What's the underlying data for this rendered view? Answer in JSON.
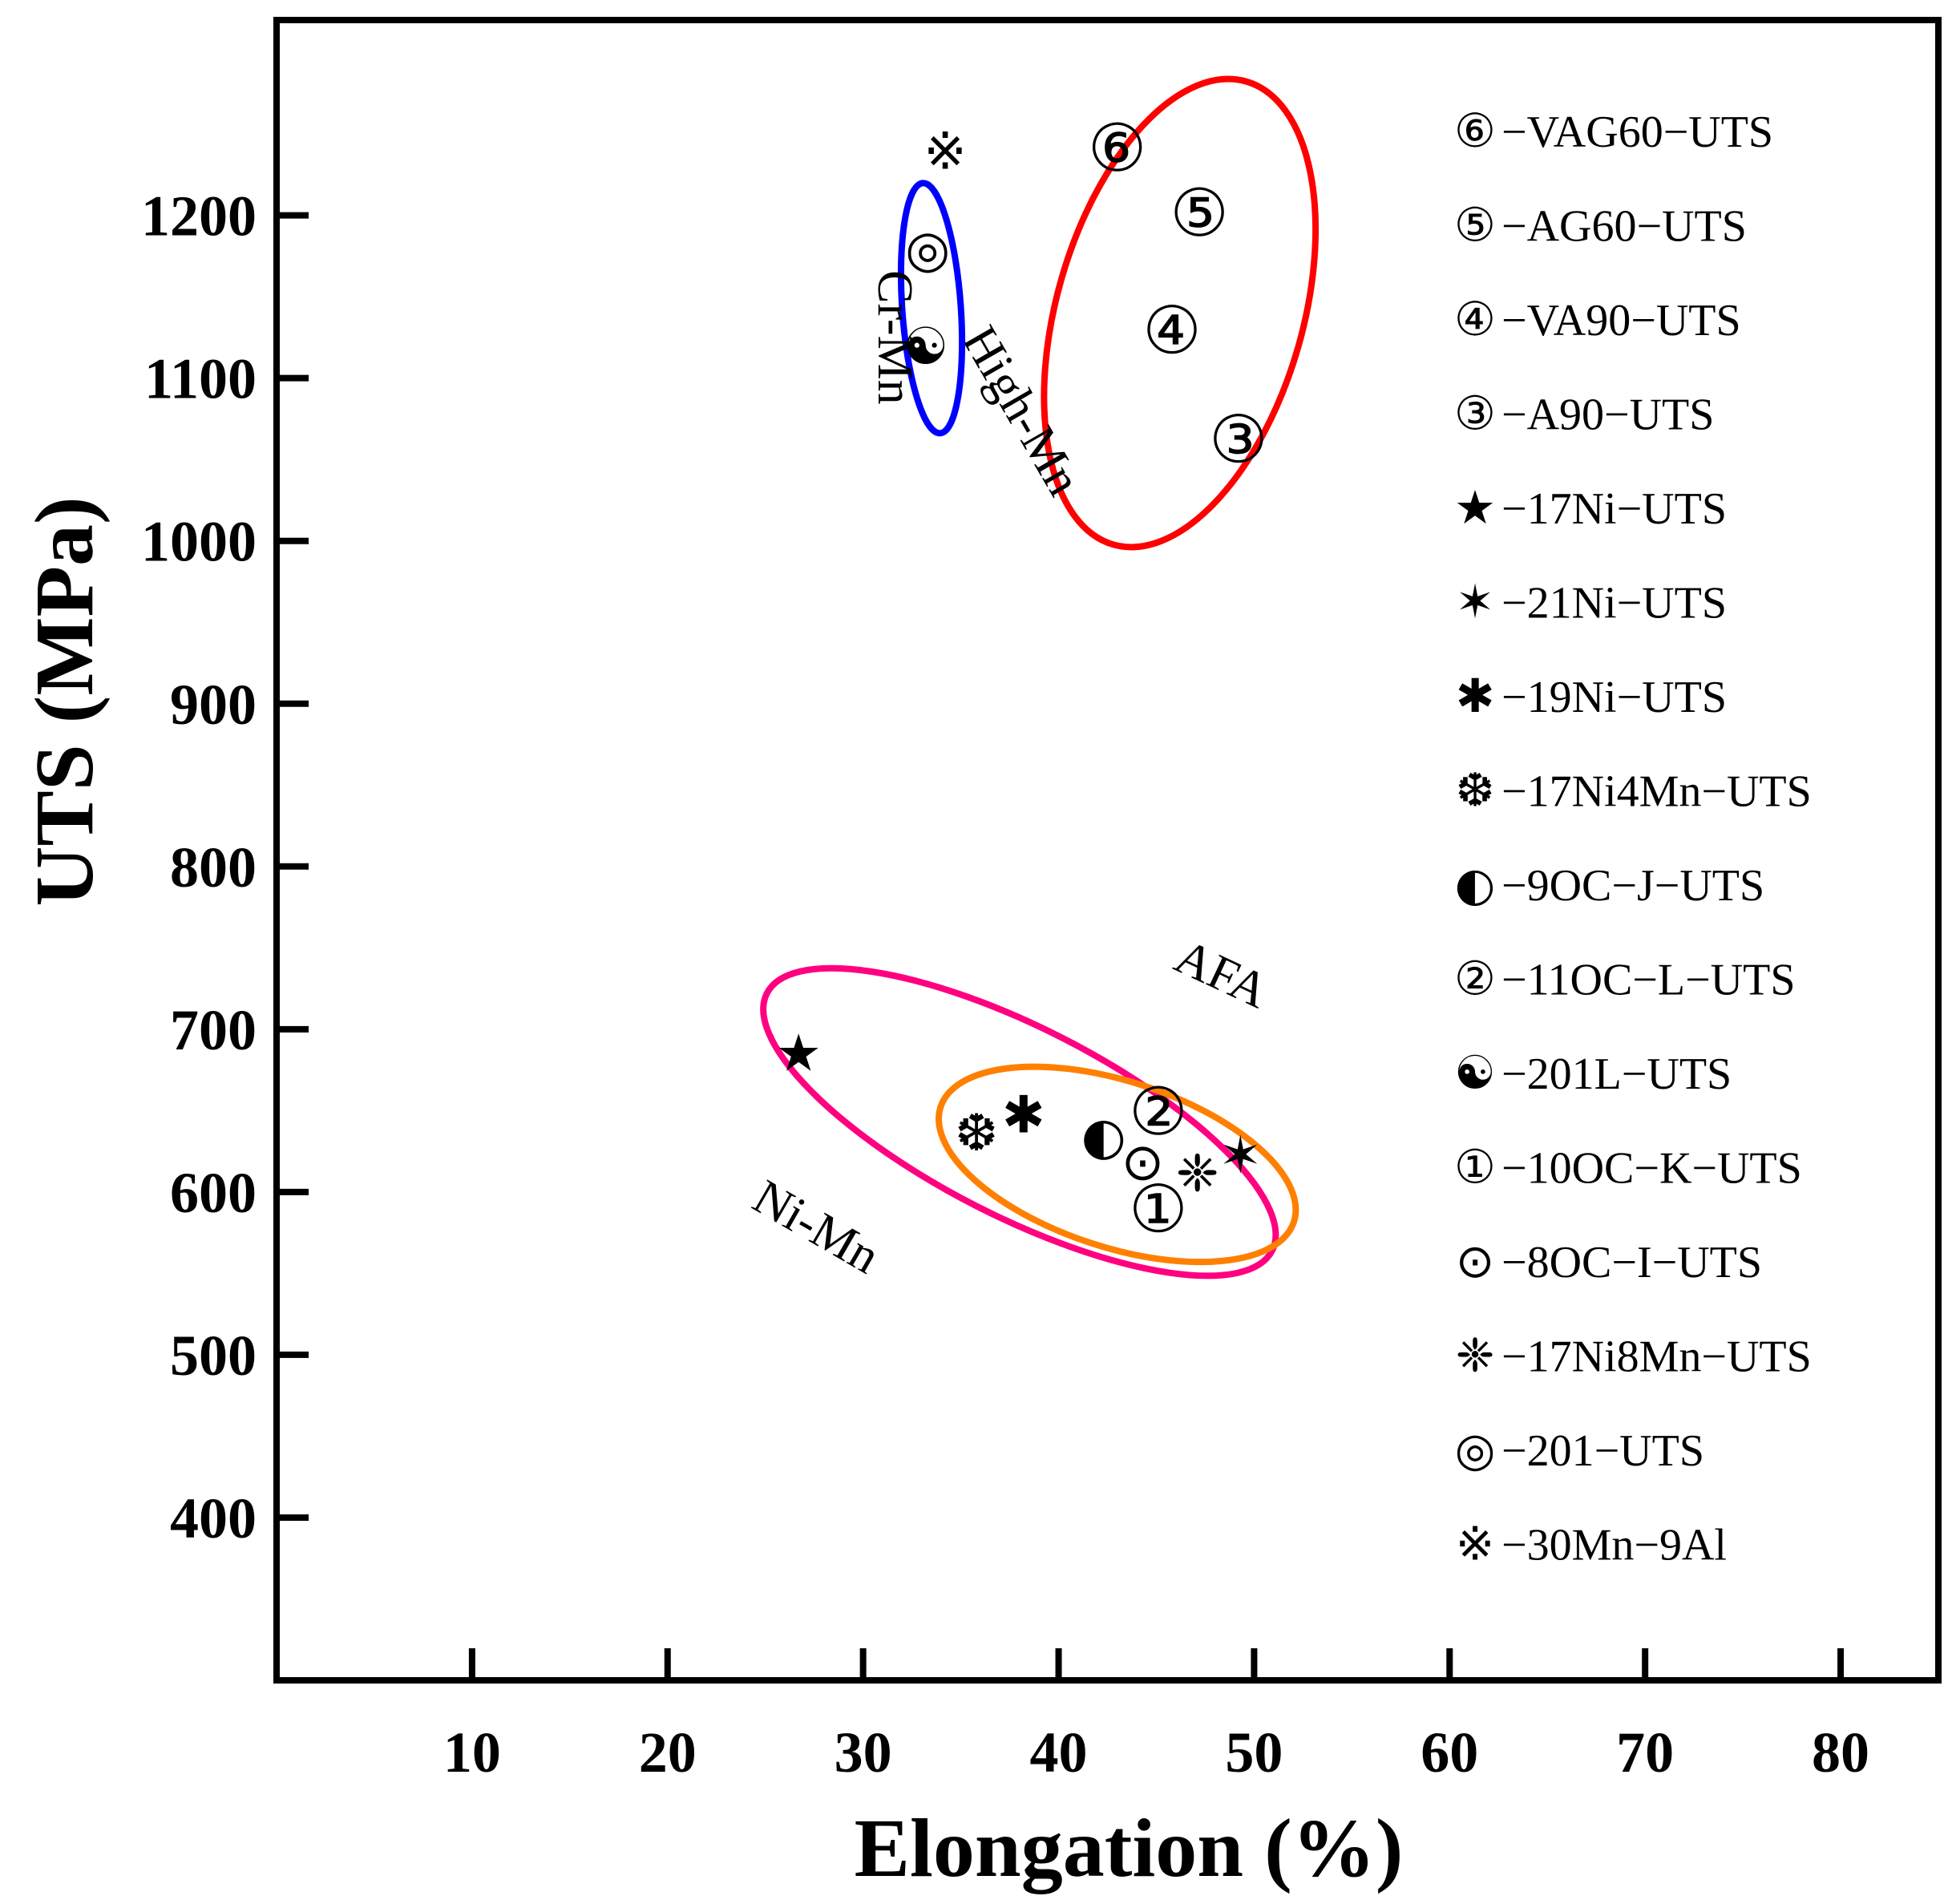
{
  "chart_data": {
    "type": "scatter",
    "title": "",
    "xlabel": "Elongation (%)",
    "ylabel": "UTS (MPa)",
    "xlim": [
      0,
      85
    ],
    "ylim": [
      300,
      1320
    ],
    "x_ticks": [
      10,
      20,
      30,
      40,
      50,
      60,
      70,
      80
    ],
    "y_ticks": [
      400,
      500,
      600,
      700,
      800,
      900,
      1000,
      1100,
      1200
    ],
    "points": [
      {
        "name": "VAG60-UTS",
        "symbol": "⑥",
        "x": 43.0,
        "y": 1242
      },
      {
        "name": "AG60-UTS",
        "symbol": "⑤",
        "x": 47.2,
        "y": 1202
      },
      {
        "name": "VA90-UTS",
        "symbol": "④",
        "x": 45.8,
        "y": 1130
      },
      {
        "name": "A90-UTS",
        "symbol": "③",
        "x": 49.2,
        "y": 1063
      },
      {
        "name": "17Ni-UTS",
        "symbol": "★",
        "x": 26.7,
        "y": 686
      },
      {
        "name": "21Ni-UTS",
        "symbol": "✶",
        "x": 49.3,
        "y": 623
      },
      {
        "name": "19Ni-UTS",
        "symbol": "✱",
        "x": 38.2,
        "y": 648
      },
      {
        "name": "17Ni4Mn-UTS",
        "symbol": "❆",
        "x": 35.8,
        "y": 637
      },
      {
        "name": "9OC-J-UTS",
        "symbol": "◐",
        "x": 42.3,
        "y": 635
      },
      {
        "name": "11OC-L-UTS",
        "symbol": "②",
        "x": 45.1,
        "y": 650
      },
      {
        "name": "201L-UTS",
        "symbol": "☯",
        "x": 33.2,
        "y": 1120
      },
      {
        "name": "10OC-K-UTS",
        "symbol": "①",
        "x": 45.1,
        "y": 590
      },
      {
        "name": "8OC-I-UTS",
        "symbol": "⊙",
        "x": 44.3,
        "y": 619
      },
      {
        "name": "17Ni8Mn-UTS",
        "symbol": "❈",
        "x": 47.1,
        "y": 612
      },
      {
        "name": "201-UTS",
        "symbol": "◎",
        "x": 33.3,
        "y": 1180
      },
      {
        "name": "30Mn-9Al",
        "symbol": "※",
        "x": 34.2,
        "y": 1240
      }
    ],
    "legend": {
      "placement": "right",
      "entries": [
        {
          "symbol": "⑥",
          "label": "−VAG60−UTS"
        },
        {
          "symbol": "⑤",
          "label": "−AG60−UTS"
        },
        {
          "symbol": "④",
          "label": "−VA90−UTS"
        },
        {
          "symbol": "③",
          "label": "−A90−UTS"
        },
        {
          "symbol": "★",
          "label": "−17Ni−UTS"
        },
        {
          "symbol": "✶",
          "label": "−21Ni−UTS"
        },
        {
          "symbol": "✱",
          "label": "−19Ni−UTS"
        },
        {
          "symbol": "❆",
          "label": "−17Ni4Mn−UTS"
        },
        {
          "symbol": "◐",
          "label": "−9OC−J−UTS"
        },
        {
          "symbol": "②",
          "label": "−11OC−L−UTS"
        },
        {
          "symbol": "☯",
          "label": "−201L−UTS"
        },
        {
          "symbol": "①",
          "label": "−10OC−K−UTS"
        },
        {
          "symbol": "⊙",
          "label": "−8OC−I−UTS"
        },
        {
          "symbol": "❈",
          "label": "−17Ni8Mn−UTS"
        },
        {
          "symbol": "◎",
          "label": "−201−UTS"
        },
        {
          "symbol": "※",
          "label": "−30Mn−9Al"
        }
      ]
    },
    "groups": [
      {
        "name": "High-Mn",
        "label": "High-Mn",
        "color": "#ff0000",
        "cx": 46.2,
        "cy": 1140,
        "rx": 6.3,
        "ry": 148,
        "rotate": 16,
        "label_x": 37.4,
        "label_y": 1075,
        "label_rotate": 60
      },
      {
        "name": "Cr-Mn",
        "label": "Cr-Mn",
        "color": "#0000ff",
        "cx": 33.5,
        "cy": 1143,
        "rx": 1.5,
        "ry": 77,
        "rotate": -4,
        "label_x": 30.8,
        "label_y": 1125,
        "label_rotate": 90
      },
      {
        "name": "Ni-Mn",
        "label": "Ni-Mn",
        "color": "#ff0080",
        "cx": 38.0,
        "cy": 643,
        "rx": 14.5,
        "ry": 58,
        "rotate": 27,
        "label_x": 27.2,
        "label_y": 570,
        "label_rotate": 30
      },
      {
        "name": "AFA",
        "label": "AFA",
        "color": "#ff8000",
        "cx": 43.0,
        "cy": 617,
        "rx": 9.5,
        "ry": 51,
        "rotate": 18,
        "label_x": 48.0,
        "label_y": 725,
        "label_rotate": 25
      }
    ]
  }
}
